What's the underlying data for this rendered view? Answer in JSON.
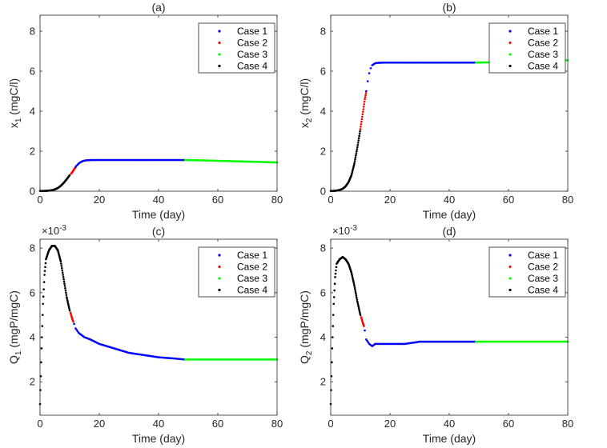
{
  "chart_data": [
    {
      "type": "scatter",
      "title": "(a)",
      "xlabel": "Time (day)",
      "ylabel": "x",
      "ylabel_sub": "1",
      "ylabel_unit": " (mgC/l)",
      "xlim": [
        0,
        80
      ],
      "ylim": [
        0,
        8.8
      ],
      "xticks": [
        0,
        20,
        40,
        60,
        80
      ],
      "yticks": [
        0,
        2,
        4,
        6,
        8
      ],
      "exponent_label": "",
      "legend": [
        "Case 1",
        "Case 2",
        "Case 3",
        "Case 4"
      ],
      "legend_position": "top-right",
      "series": [
        {
          "name": "Case 4",
          "x": [
            0,
            1,
            2,
            3,
            4,
            5,
            6,
            7,
            8,
            9,
            10
          ],
          "y": [
            0.01,
            0.012,
            0.018,
            0.03,
            0.05,
            0.09,
            0.16,
            0.27,
            0.42,
            0.6,
            0.8
          ]
        },
        {
          "name": "Case 2",
          "x": [
            10.5,
            11,
            11.5,
            12
          ],
          "y": [
            0.88,
            0.98,
            1.1,
            1.2
          ]
        },
        {
          "name": "Case 1",
          "x": [
            12,
            13,
            14,
            15,
            16,
            18,
            20,
            25,
            30,
            35,
            40,
            45,
            49
          ],
          "y": [
            1.22,
            1.38,
            1.48,
            1.53,
            1.55,
            1.56,
            1.56,
            1.56,
            1.56,
            1.56,
            1.56,
            1.56,
            1.56
          ]
        },
        {
          "name": "Case 3",
          "x": [
            49,
            55,
            60,
            65,
            70,
            75,
            80
          ],
          "y": [
            1.56,
            1.54,
            1.52,
            1.5,
            1.48,
            1.46,
            1.44
          ]
        }
      ]
    },
    {
      "type": "scatter",
      "title": "(b)",
      "xlabel": "Time (day)",
      "ylabel": "x",
      "ylabel_sub": "2",
      "ylabel_unit": " (mgC/l)",
      "xlim": [
        0,
        80
      ],
      "ylim": [
        0,
        8.8
      ],
      "xticks": [
        0,
        20,
        40,
        60,
        80
      ],
      "yticks": [
        0,
        2,
        4,
        6,
        8
      ],
      "exponent_label": "",
      "legend": [
        "Case 1",
        "Case 2",
        "Case 3",
        "Case 4"
      ],
      "legend_position": "top-right",
      "series": [
        {
          "name": "Case 4",
          "x": [
            0,
            1,
            2,
            3,
            4,
            5,
            6,
            7,
            8,
            9,
            10
          ],
          "y": [
            0.01,
            0.015,
            0.03,
            0.06,
            0.12,
            0.24,
            0.45,
            0.8,
            1.4,
            2.2,
            3.1
          ]
        },
        {
          "name": "Case 2",
          "x": [
            10,
            10.5,
            11,
            11.5,
            12
          ],
          "y": [
            3.1,
            3.6,
            4.1,
            4.6,
            5.0
          ]
        },
        {
          "name": "Case 1",
          "x": [
            12,
            12.5,
            13,
            13.5,
            14,
            15,
            16,
            18,
            20,
            30,
            40,
            49
          ],
          "y": [
            5.0,
            5.5,
            5.9,
            6.15,
            6.3,
            6.4,
            6.42,
            6.43,
            6.43,
            6.43,
            6.43,
            6.43
          ]
        },
        {
          "name": "Case 3",
          "x": [
            49,
            55,
            60,
            65,
            70,
            75,
            80
          ],
          "y": [
            6.43,
            6.45,
            6.47,
            6.49,
            6.51,
            6.53,
            6.55
          ]
        }
      ]
    },
    {
      "type": "scatter",
      "title": "(c)",
      "xlabel": "Time (day)",
      "ylabel": "Q",
      "ylabel_sub": "1",
      "ylabel_unit": " (mgP/mgC)",
      "xlim": [
        0,
        80
      ],
      "ylim": [
        0.0005,
        0.0084
      ],
      "xticks": [
        0,
        20,
        40,
        60,
        80
      ],
      "yticks": [
        0.002,
        0.004,
        0.006,
        0.008
      ],
      "ytick_labels": [
        "2",
        "4",
        "6",
        "8"
      ],
      "exponent_label": "×10",
      "exponent_power": "-3",
      "legend": [
        "Case 1",
        "Case 2",
        "Case 3",
        "Case 4"
      ],
      "legend_position": "top-right",
      "series": [
        {
          "name": "Case 4",
          "x": [
            0,
            0.5,
            1,
            1.5,
            2,
            3,
            4,
            5,
            6,
            7,
            8,
            9,
            10
          ],
          "y": [
            0.001,
            0.0035,
            0.0055,
            0.0068,
            0.0075,
            0.0079,
            0.0081,
            0.0081,
            0.0079,
            0.0074,
            0.0066,
            0.0058,
            0.0052
          ]
        },
        {
          "name": "Case 2",
          "x": [
            10.3,
            10.7,
            11.2
          ],
          "y": [
            0.0051,
            0.0049,
            0.0047
          ]
        },
        {
          "name": "Case 1",
          "x": [
            11.5,
            12,
            13,
            14,
            15,
            17,
            20,
            25,
            30,
            35,
            40,
            45,
            49
          ],
          "y": [
            0.0046,
            0.0044,
            0.0042,
            0.0041,
            0.004,
            0.0039,
            0.0037,
            0.0035,
            0.0033,
            0.0032,
            0.0031,
            0.00305,
            0.003
          ]
        },
        {
          "name": "Case 3",
          "x": [
            49,
            55,
            60,
            65,
            70,
            75,
            80
          ],
          "y": [
            0.003,
            0.003,
            0.003,
            0.003,
            0.003,
            0.003,
            0.003
          ]
        }
      ]
    },
    {
      "type": "scatter",
      "title": "(d)",
      "xlabel": "Time (day)",
      "ylabel": "Q",
      "ylabel_sub": "2",
      "ylabel_unit": " (mgP/mgC)",
      "xlim": [
        0,
        80
      ],
      "ylim": [
        0.0005,
        0.0084
      ],
      "xticks": [
        0,
        20,
        40,
        60,
        80
      ],
      "yticks": [
        0.002,
        0.004,
        0.006,
        0.008
      ],
      "ytick_labels": [
        "2",
        "4",
        "6",
        "8"
      ],
      "exponent_label": "×10",
      "exponent_power": "-3",
      "legend": [
        "Case 1",
        "Case 2",
        "Case 3",
        "Case 4"
      ],
      "legend_position": "top-right",
      "series": [
        {
          "name": "Case 4",
          "x": [
            0,
            0.5,
            1,
            1.5,
            2,
            3,
            4,
            5,
            6,
            7,
            8,
            9,
            10
          ],
          "y": [
            0.001,
            0.0035,
            0.0055,
            0.0067,
            0.0073,
            0.0075,
            0.0076,
            0.0075,
            0.0073,
            0.0069,
            0.0063,
            0.0056,
            0.005
          ]
        },
        {
          "name": "Case 2",
          "x": [
            10.3,
            10.7,
            11.2
          ],
          "y": [
            0.0049,
            0.0047,
            0.0045
          ]
        },
        {
          "name": "Case 1",
          "x": [
            11.5,
            12,
            13,
            14,
            15,
            17,
            20,
            25,
            30,
            35,
            40,
            45,
            49
          ],
          "y": [
            0.0043,
            0.0039,
            0.0037,
            0.0036,
            0.0037,
            0.0037,
            0.0037,
            0.0037,
            0.0038,
            0.0038,
            0.0038,
            0.0038,
            0.0038
          ]
        },
        {
          "name": "Case 3",
          "x": [
            49,
            55,
            60,
            65,
            70,
            75,
            80
          ],
          "y": [
            0.0038,
            0.0038,
            0.0038,
            0.0038,
            0.0038,
            0.0038,
            0.0038
          ]
        }
      ]
    }
  ],
  "colors": {
    "Case 1": "#0000ff",
    "Case 2": "#ff0000",
    "Case 3": "#00ff00",
    "Case 4": "#000000",
    "axis": "#262626"
  }
}
